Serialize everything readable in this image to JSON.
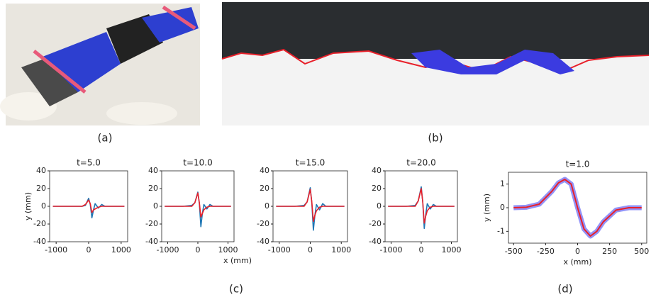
{
  "captions": [
    "(a)",
    "(b)",
    "(c)",
    "(d)"
  ],
  "chart_data": [
    {
      "type": "line",
      "title": "t=5.0",
      "y_label": "y (mm)",
      "xlim": [
        -1200,
        1200
      ],
      "ylim": [
        -40,
        40
      ],
      "xticks": [
        -1000,
        0,
        1000
      ],
      "yticks": [
        -40,
        -20,
        0,
        20,
        40
      ],
      "x": [
        -1100,
        -500,
        -200,
        -100,
        0,
        50,
        100,
        150,
        200,
        300,
        400,
        500,
        600,
        1100
      ],
      "series": [
        {
          "color": "#1f77b4",
          "values": [
            0,
            0,
            0,
            1,
            9,
            2,
            -13,
            -4,
            3,
            -2,
            2,
            0,
            0,
            0
          ]
        },
        {
          "color": "#e8202a",
          "values": [
            0,
            0,
            0,
            2,
            7,
            3,
            -7,
            -4,
            -3,
            -1,
            0,
            0,
            0,
            0
          ]
        }
      ]
    },
    {
      "type": "line",
      "title": "t=10.0",
      "x_label": "x (mm)",
      "xlim": [
        -1200,
        1200
      ],
      "ylim": [
        -40,
        40
      ],
      "xticks": [
        -1000,
        0,
        1000
      ],
      "yticks": [
        -40,
        -20,
        0,
        20,
        40
      ],
      "x": [
        -1100,
        -500,
        -200,
        -100,
        0,
        50,
        100,
        150,
        200,
        300,
        400,
        500,
        600,
        1100
      ],
      "series": [
        {
          "color": "#1f77b4",
          "values": [
            0,
            0,
            1,
            4,
            16,
            3,
            -23,
            -8,
            2,
            -3,
            2,
            0,
            0,
            0
          ]
        },
        {
          "color": "#e8202a",
          "values": [
            0,
            0,
            0,
            4,
            15,
            4,
            -12,
            -8,
            -4,
            -1,
            0,
            0,
            0,
            0
          ]
        }
      ]
    },
    {
      "type": "line",
      "title": "t=15.0",
      "xlim": [
        -1200,
        1200
      ],
      "ylim": [
        -40,
        40
      ],
      "xticks": [
        -1000,
        0,
        1000
      ],
      "yticks": [
        -40,
        -20,
        0,
        20,
        40
      ],
      "x": [
        -1100,
        -500,
        -200,
        -100,
        0,
        50,
        100,
        150,
        200,
        300,
        400,
        500,
        600,
        1100
      ],
      "series": [
        {
          "color": "#1f77b4",
          "values": [
            0,
            0,
            1,
            5,
            21,
            4,
            -27,
            -10,
            2,
            -4,
            3,
            0,
            0,
            0
          ]
        },
        {
          "color": "#e8202a",
          "values": [
            0,
            0,
            0,
            5,
            19,
            5,
            -17,
            -10,
            -5,
            -1,
            0,
            0,
            0,
            0
          ]
        }
      ]
    },
    {
      "type": "line",
      "title": "t=20.0",
      "xlim": [
        -1200,
        1200
      ],
      "ylim": [
        -40,
        40
      ],
      "xticks": [
        -1000,
        0,
        1000
      ],
      "yticks": [
        -40,
        -20,
        0,
        20,
        40
      ],
      "x": [
        -1100,
        -500,
        -200,
        -100,
        0,
        50,
        100,
        150,
        200,
        300,
        400,
        500,
        600,
        1100
      ],
      "series": [
        {
          "color": "#1f77b4",
          "values": [
            0,
            0,
            1,
            6,
            22,
            5,
            -25,
            -9,
            3,
            -3,
            2,
            0,
            0,
            0
          ]
        },
        {
          "color": "#e8202a",
          "values": [
            0,
            0,
            0,
            6,
            20,
            5,
            -19,
            -11,
            -5,
            -1,
            0,
            0,
            0,
            0
          ]
        }
      ]
    },
    {
      "type": "line",
      "title": "t=1.0",
      "x_label": "x (mm)",
      "y_label": "y (mm)",
      "xlim": [
        -540,
        540
      ],
      "ylim": [
        -1.5,
        1.5
      ],
      "xticks": [
        -500,
        -250,
        0,
        250,
        500
      ],
      "yticks": [
        -1,
        0,
        1
      ],
      "x": [
        -500,
        -400,
        -300,
        -200,
        -150,
        -100,
        -50,
        0,
        50,
        100,
        150,
        200,
        300,
        400,
        500
      ],
      "series": [
        {
          "color": "#3b3bf0",
          "width": 7,
          "values": [
            0,
            0.02,
            0.15,
            0.7,
            1.05,
            1.2,
            1.0,
            0,
            -0.9,
            -1.2,
            -1.0,
            -0.6,
            -0.1,
            0,
            0
          ]
        },
        {
          "color": "#e8202a",
          "width": 2,
          "values": [
            0,
            0.02,
            0.15,
            0.7,
            1.05,
            1.2,
            1.0,
            0,
            -0.9,
            -1.2,
            -1.0,
            -0.6,
            -0.1,
            0,
            0
          ]
        }
      ]
    }
  ]
}
